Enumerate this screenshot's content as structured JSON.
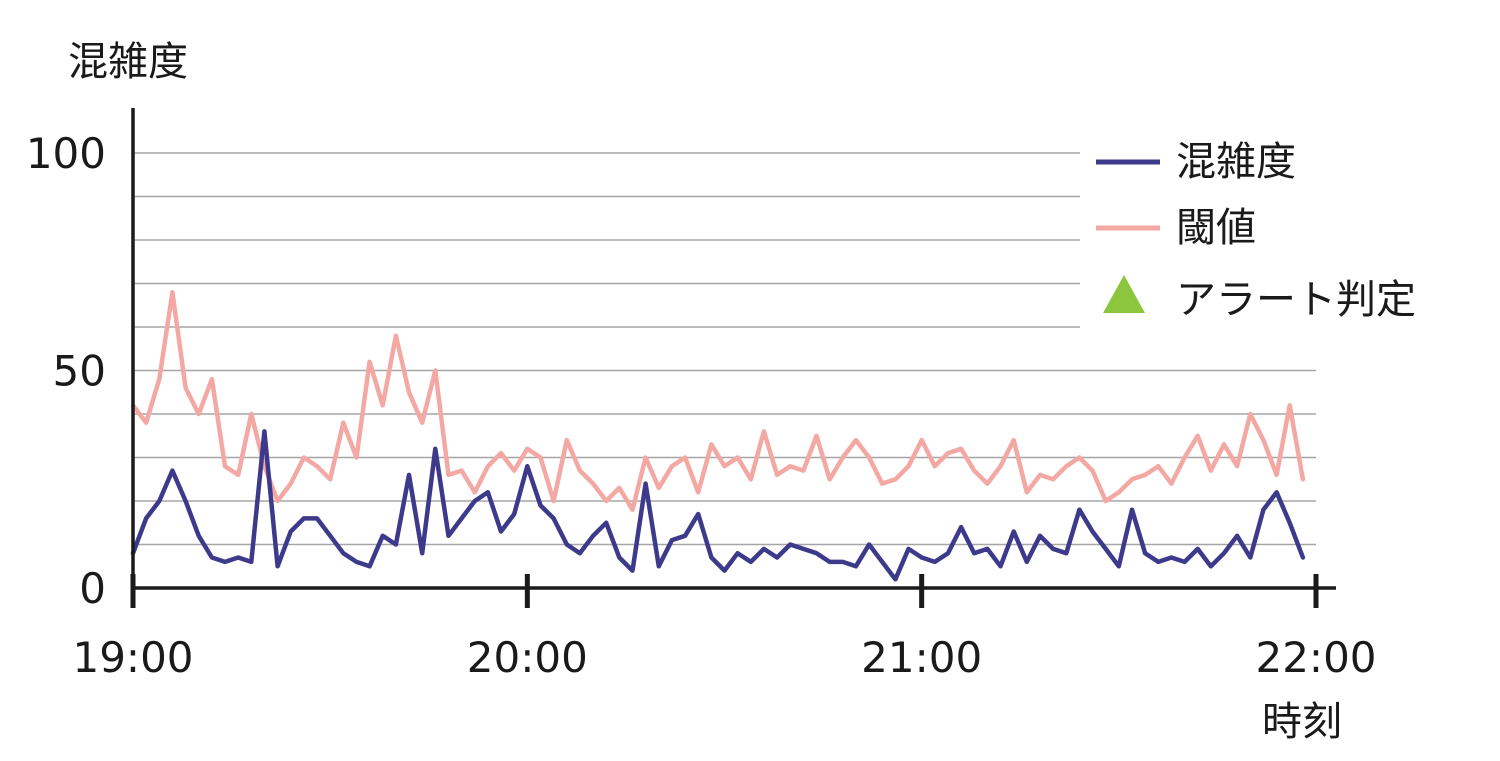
{
  "chart_data": {
    "type": "line",
    "title": "",
    "xlabel": "時刻",
    "ylabel": "混雑度",
    "x_ticks": [
      "19:00",
      "20:00",
      "21:00",
      "22:00"
    ],
    "y_ticks": [
      0,
      50,
      100
    ],
    "xlim": [
      0,
      180
    ],
    "ylim": [
      0,
      110
    ],
    "grid": "horizontal, every 10",
    "legend_position": "top-right",
    "series": [
      {
        "name": "混雑度",
        "color": "#3d3a8c",
        "x": [
          0,
          2,
          4,
          6,
          8,
          10,
          12,
          14,
          16,
          18,
          20,
          22,
          24,
          26,
          28,
          30,
          32,
          34,
          36,
          38,
          40,
          42,
          44,
          46,
          48,
          50,
          52,
          54,
          56,
          58,
          60,
          62,
          64,
          66,
          68,
          70,
          72,
          74,
          76,
          78,
          80,
          82,
          84,
          86,
          88,
          90,
          92,
          94,
          96,
          98,
          100,
          102,
          104,
          106,
          108,
          110,
          112,
          114,
          116,
          118,
          120,
          122,
          124,
          126,
          128,
          130,
          132,
          134,
          136,
          138,
          140,
          142,
          144,
          146,
          148,
          150,
          152,
          154,
          156,
          158,
          160,
          162,
          164,
          166,
          168,
          170,
          172,
          174,
          176,
          178
        ],
        "values": [
          8,
          16,
          20,
          27,
          20,
          12,
          7,
          6,
          7,
          6,
          36,
          5,
          13,
          16,
          16,
          12,
          8,
          6,
          5,
          12,
          10,
          26,
          8,
          32,
          12,
          16,
          20,
          22,
          13,
          17,
          28,
          19,
          16,
          10,
          8,
          12,
          15,
          7,
          4,
          24,
          5,
          11,
          12,
          17,
          7,
          4,
          8,
          6,
          9,
          7,
          10,
          9,
          8,
          6,
          6,
          5,
          10,
          6,
          2,
          9,
          7,
          6,
          8,
          14,
          8,
          9,
          5,
          13,
          6,
          12,
          9,
          8,
          18,
          13,
          9,
          5,
          18,
          8,
          6,
          7,
          6,
          9,
          5,
          8,
          12,
          7,
          18,
          22,
          15,
          7
        ]
      },
      {
        "name": "閾値",
        "color": "#f4a8a3",
        "x": [
          0,
          2,
          4,
          6,
          8,
          10,
          12,
          14,
          16,
          18,
          20,
          22,
          24,
          26,
          28,
          30,
          32,
          34,
          36,
          38,
          40,
          42,
          44,
          46,
          48,
          50,
          52,
          54,
          56,
          58,
          60,
          62,
          64,
          66,
          68,
          70,
          72,
          74,
          76,
          78,
          80,
          82,
          84,
          86,
          88,
          90,
          92,
          94,
          96,
          98,
          100,
          102,
          104,
          106,
          108,
          110,
          112,
          114,
          116,
          118,
          120,
          122,
          124,
          126,
          128,
          130,
          132,
          134,
          136,
          138,
          140,
          142,
          144,
          146,
          148,
          150,
          152,
          154,
          156,
          158,
          160,
          162,
          164,
          166,
          168,
          170,
          172,
          174,
          176,
          178
        ],
        "values": [
          42,
          38,
          48,
          68,
          46,
          40,
          48,
          28,
          26,
          40,
          28,
          20,
          24,
          30,
          28,
          25,
          38,
          30,
          52,
          42,
          58,
          45,
          38,
          50,
          26,
          27,
          22,
          28,
          31,
          27,
          32,
          30,
          20,
          34,
          27,
          24,
          20,
          23,
          18,
          30,
          23,
          28,
          30,
          22,
          33,
          28,
          30,
          25,
          36,
          26,
          28,
          27,
          35,
          25,
          30,
          34,
          30,
          24,
          25,
          28,
          34,
          28,
          31,
          32,
          27,
          24,
          28,
          34,
          22,
          26,
          25,
          28,
          30,
          27,
          20,
          22,
          25,
          26,
          28,
          24,
          30,
          35,
          27,
          33,
          28,
          40,
          34,
          26,
          42,
          25
        ]
      }
    ],
    "legend": [
      {
        "label": "混雑度",
        "marker": "line",
        "color": "#3d3a8c"
      },
      {
        "label": "閾値",
        "marker": "line",
        "color": "#f4a8a3"
      },
      {
        "label": "アラート判定",
        "marker": "triangle",
        "color": "#8cc63f"
      }
    ]
  }
}
